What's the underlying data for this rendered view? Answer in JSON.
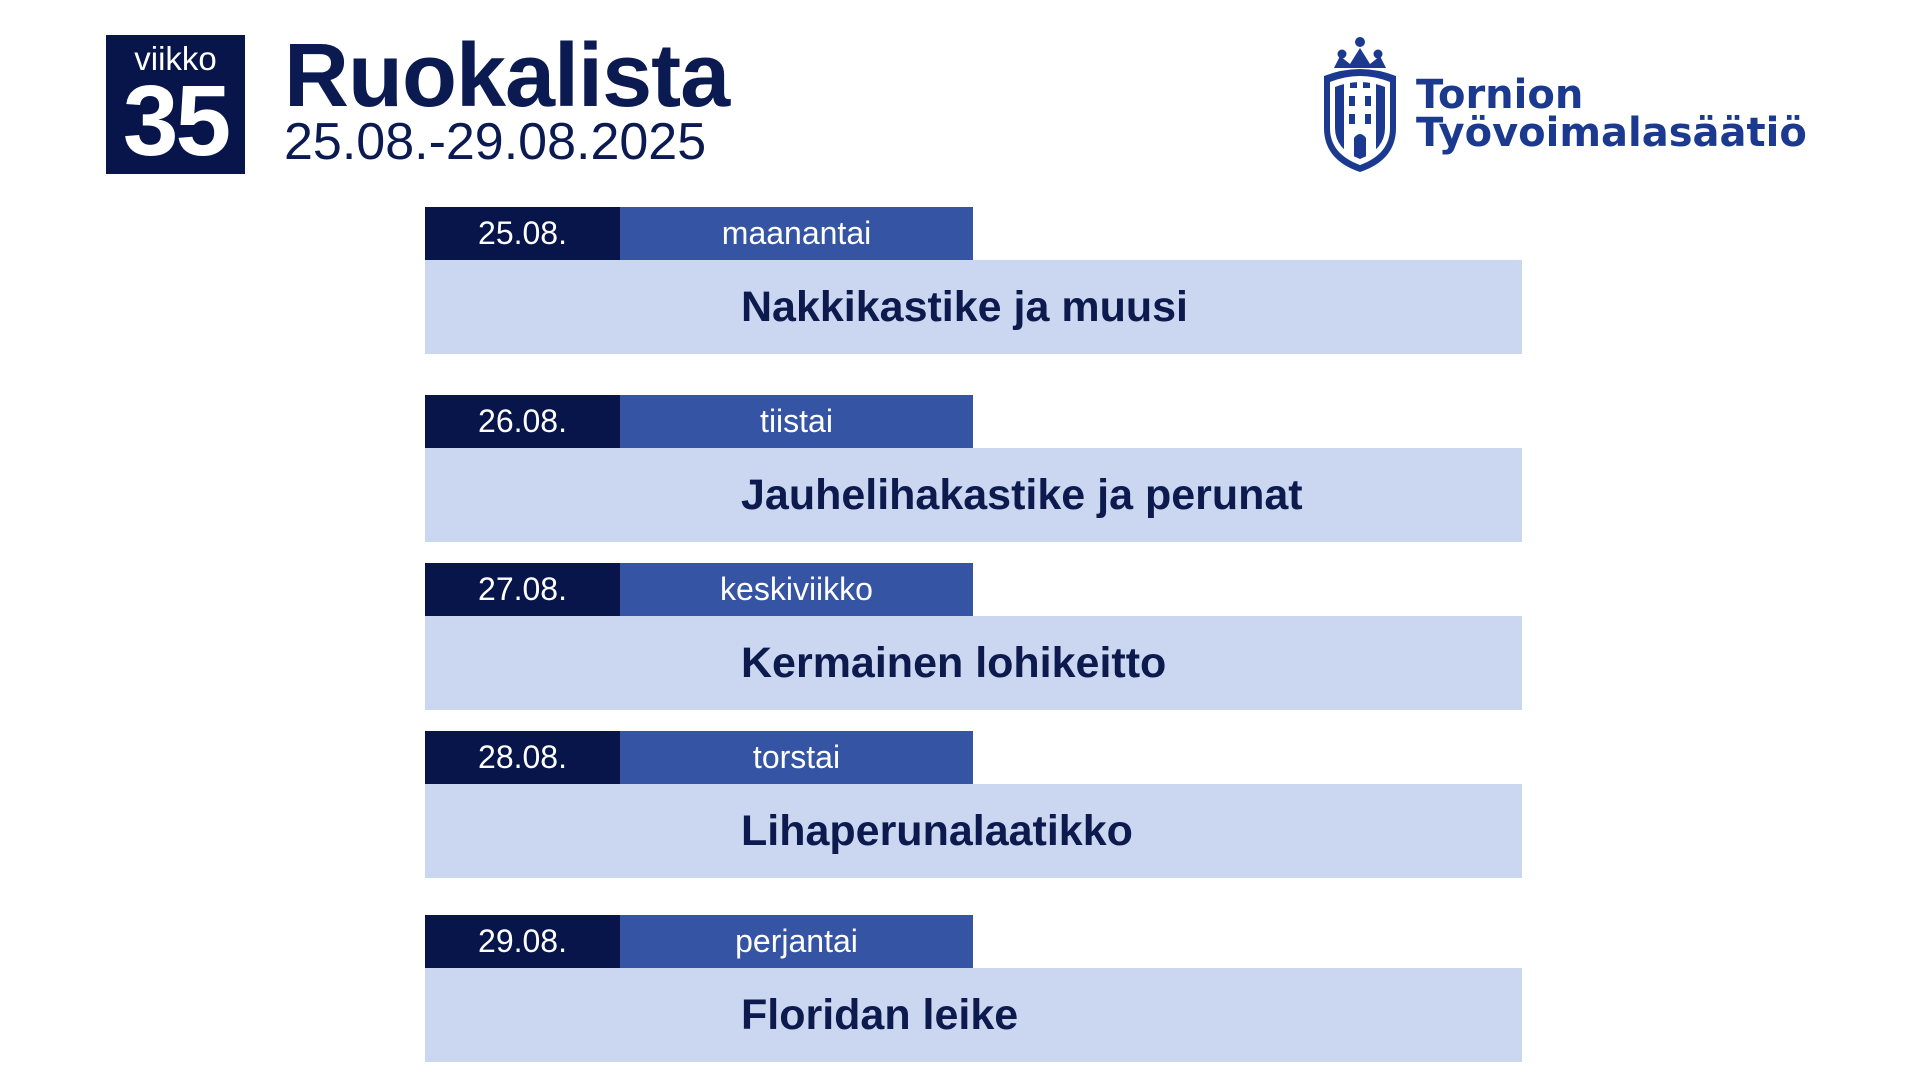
{
  "header": {
    "week_label": "viikko",
    "week_number": "35",
    "title": "Ruokalista",
    "date_range": "25.08.-29.08.2025"
  },
  "logo": {
    "line1": "Tornion",
    "line2": "Työvoimalasäätiö",
    "icon": "castle-crest-icon",
    "color": "#1b3a8f"
  },
  "colors": {
    "navy": "#07154a",
    "blue": "#3554a4",
    "light_blue": "#cbd6f1",
    "text_dark": "#0d1a4d"
  },
  "menu": [
    {
      "date": "25.08.",
      "weekday": "maanantai",
      "dish": "Nakkikastike ja muusi"
    },
    {
      "date": "26.08.",
      "weekday": "tiistai",
      "dish": "Jauhelihakastike ja perunat"
    },
    {
      "date": "27.08.",
      "weekday": "keskiviikko",
      "dish": "Kermainen lohikeitto"
    },
    {
      "date": "28.08.",
      "weekday": "torstai",
      "dish": "Lihaperunalaatikko"
    },
    {
      "date": "29.08.",
      "weekday": "perjantai",
      "dish": "Floridan leike"
    }
  ]
}
